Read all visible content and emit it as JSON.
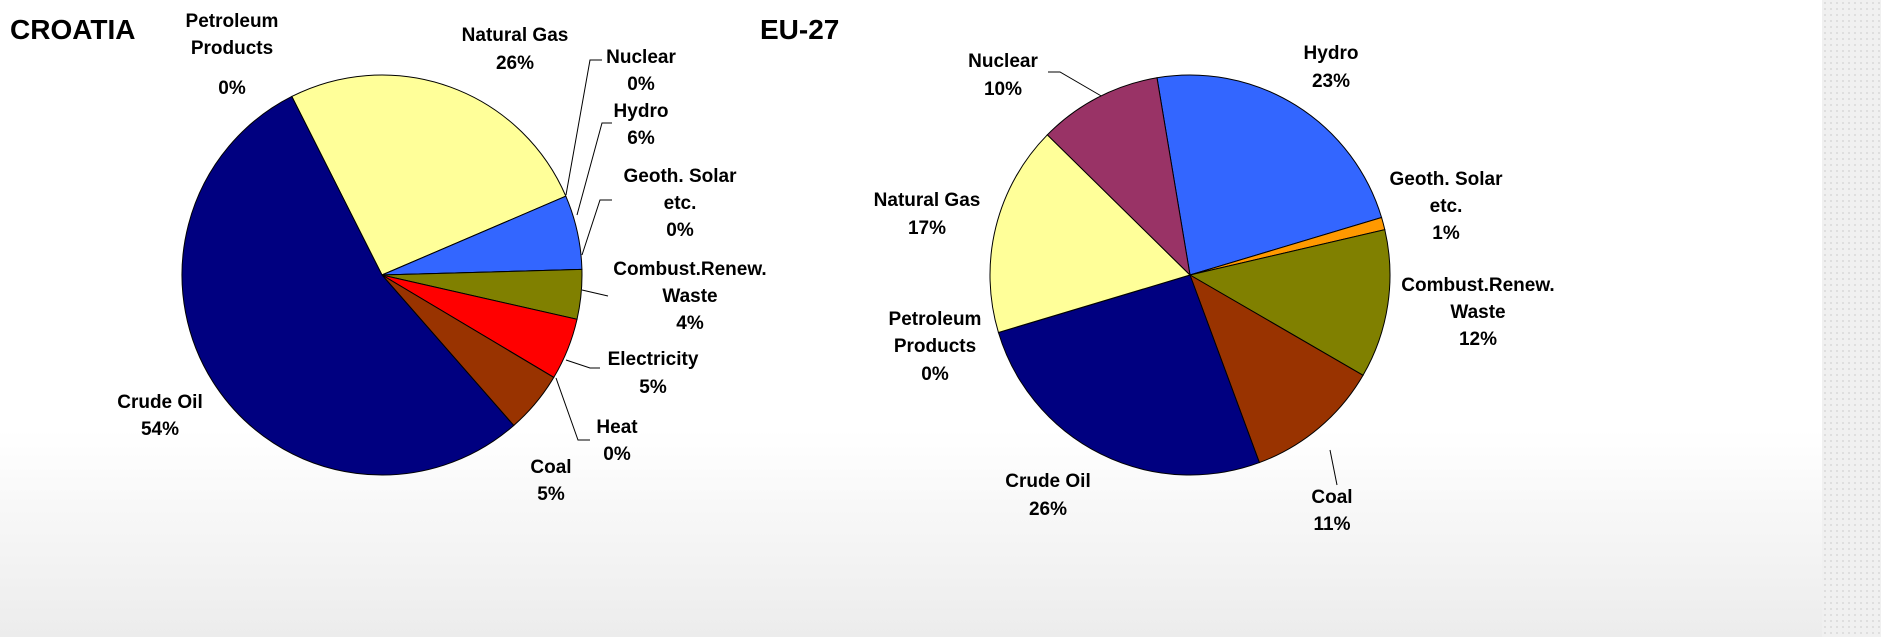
{
  "chart_data": [
    {
      "type": "pie",
      "title": "CROATIA",
      "categories": [
        "Petroleum Products",
        "Natural Gas",
        "Nuclear",
        "Hydro",
        "Geoth. Solar etc.",
        "Combust.Renew. Waste",
        "Electricity",
        "Heat",
        "Coal",
        "Crude Oil"
      ],
      "values": [
        0,
        26,
        0,
        6,
        0,
        4,
        5,
        0,
        5,
        54
      ],
      "value_labels": [
        "0%",
        "26%",
        "0%",
        "6%",
        "0%",
        "4%",
        "5%",
        "0%",
        "5%",
        "54%"
      ],
      "colors": [
        "#ccffcc",
        "#ffff99",
        "#993366",
        "#3366ff",
        "#ff9900",
        "#808000",
        "#ff0000",
        "#ff99cc",
        "#993300",
        "#000080"
      ]
    },
    {
      "type": "pie",
      "title": "EU-27",
      "categories": [
        "Hydro",
        "Geoth. Solar etc.",
        "Combust.Renew. Waste",
        "Coal",
        "Crude Oil",
        "Petroleum Products",
        "Natural Gas",
        "Nuclear"
      ],
      "values": [
        23,
        1,
        12,
        11,
        26,
        0,
        17,
        10
      ],
      "value_labels": [
        "23%",
        "1%",
        "12%",
        "11%",
        "26%",
        "0%",
        "17%",
        "10%"
      ],
      "colors": [
        "#3366ff",
        "#ff9900",
        "#808000",
        "#993300",
        "#000080",
        "#ccffcc",
        "#ffff99",
        "#993366"
      ]
    }
  ]
}
